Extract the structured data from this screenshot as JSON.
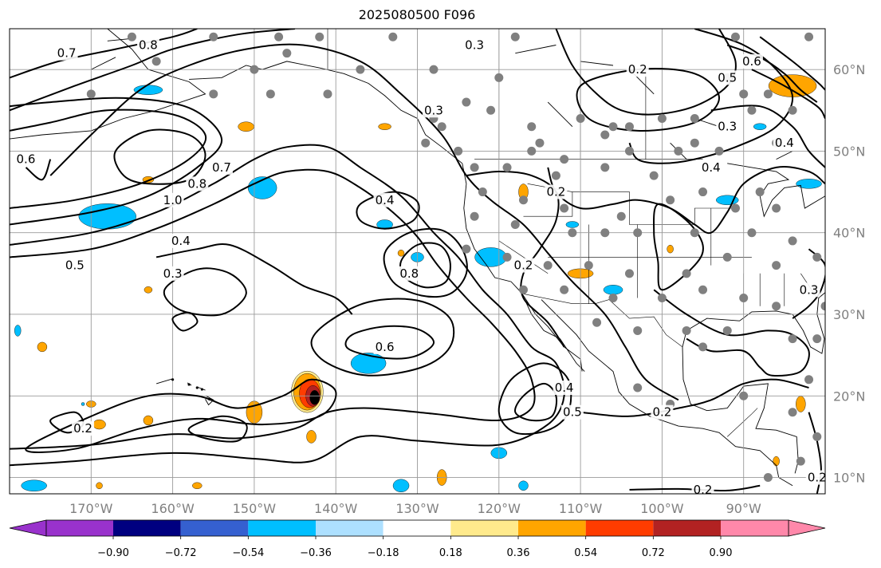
{
  "figure": {
    "title": "2025080500 F096"
  },
  "map": {
    "extent": {
      "lon": [
        -180,
        -80
      ],
      "lat": [
        8,
        65
      ]
    },
    "lon_labels": [
      "170°W",
      "160°W",
      "150°W",
      "140°W",
      "130°W",
      "120°W",
      "110°W",
      "100°W",
      "90°W"
    ],
    "lat_labels": [
      "60°N",
      "50°N",
      "40°N",
      "30°N",
      "20°N",
      "10°N"
    ],
    "contour_labels": [
      {
        "text": "0.7",
        "lon": -173,
        "lat": 62
      },
      {
        "text": "0.8",
        "lon": -163,
        "lat": 63
      },
      {
        "text": "0.6",
        "lon": -178,
        "lat": 49
      },
      {
        "text": "1.0",
        "lon": -160,
        "lat": 44
      },
      {
        "text": "0.8",
        "lon": -157,
        "lat": 46
      },
      {
        "text": "0.7",
        "lon": -154,
        "lat": 48
      },
      {
        "text": "0.5",
        "lon": -172,
        "lat": 36
      },
      {
        "text": "0.4",
        "lon": -159,
        "lat": 39
      },
      {
        "text": "0.3",
        "lon": -160,
        "lat": 35
      },
      {
        "text": "0.3",
        "lon": -123,
        "lat": 63
      },
      {
        "text": "0.3",
        "lon": -128,
        "lat": 55
      },
      {
        "text": "0.4",
        "lon": -134,
        "lat": 44
      },
      {
        "text": "0.8",
        "lon": -131,
        "lat": 35
      },
      {
        "text": "0.6",
        "lon": -134,
        "lat": 26
      },
      {
        "text": "0.2",
        "lon": -117,
        "lat": 36
      },
      {
        "text": "0.2",
        "lon": -113,
        "lat": 45
      },
      {
        "text": "0.2",
        "lon": -103,
        "lat": 60
      },
      {
        "text": "0.4",
        "lon": -112,
        "lat": 21
      },
      {
        "text": "0.5",
        "lon": -111,
        "lat": 18
      },
      {
        "text": "0.2",
        "lon": -100,
        "lat": 18
      },
      {
        "text": "0.2",
        "lon": -171,
        "lat": 16
      },
      {
        "text": "0.5",
        "lon": -92,
        "lat": 59
      },
      {
        "text": "0.6",
        "lon": -89,
        "lat": 61
      },
      {
        "text": "0.3",
        "lon": -92,
        "lat": 53
      },
      {
        "text": "0.4",
        "lon": -85,
        "lat": 51
      },
      {
        "text": "0.4",
        "lon": -94,
        "lat": 48
      },
      {
        "text": "0.3",
        "lon": -82,
        "lat": 33
      },
      {
        "text": "0.2",
        "lon": -81,
        "lat": 10
      },
      {
        "text": "0.2",
        "lon": -95,
        "lat": 8.5
      }
    ],
    "stations": [
      [
        -165,
        64
      ],
      [
        -155,
        64
      ],
      [
        -147,
        64
      ],
      [
        -142,
        64
      ],
      [
        -133,
        64
      ],
      [
        -118,
        64
      ],
      [
        -91,
        64
      ],
      [
        -82,
        64
      ],
      [
        -162,
        61
      ],
      [
        -150,
        60
      ],
      [
        -146,
        62
      ],
      [
        -137,
        60
      ],
      [
        -128,
        60
      ],
      [
        -120,
        59
      ],
      [
        -92,
        59
      ],
      [
        -170,
        57
      ],
      [
        -155,
        57
      ],
      [
        -148,
        57
      ],
      [
        -141,
        57
      ],
      [
        -124,
        56
      ],
      [
        -121,
        55
      ],
      [
        -90,
        57
      ],
      [
        -87,
        57
      ],
      [
        -110,
        54
      ],
      [
        -106,
        53
      ],
      [
        -104,
        53
      ],
      [
        -100,
        54
      ],
      [
        -96,
        54
      ],
      [
        -89,
        55
      ],
      [
        -84,
        55
      ],
      [
        -128,
        54
      ],
      [
        -127,
        53
      ],
      [
        -116,
        53
      ],
      [
        -115,
        51
      ],
      [
        -107,
        52
      ],
      [
        -98,
        50
      ],
      [
        -96,
        51
      ],
      [
        -93,
        50
      ],
      [
        -129,
        51
      ],
      [
        -125,
        50
      ],
      [
        -116,
        50
      ],
      [
        -112,
        49
      ],
      [
        -104,
        50
      ],
      [
        -86,
        51
      ],
      [
        -123,
        48
      ],
      [
        -119,
        48
      ],
      [
        -113,
        47
      ],
      [
        -107,
        48
      ],
      [
        -101,
        47
      ],
      [
        -95,
        45
      ],
      [
        -88,
        45
      ],
      [
        -122,
        45
      ],
      [
        -117,
        44
      ],
      [
        -112,
        43
      ],
      [
        -105,
        42
      ],
      [
        -99,
        44
      ],
      [
        -91,
        43
      ],
      [
        -86,
        43
      ],
      [
        -123,
        42
      ],
      [
        -118,
        41
      ],
      [
        -111,
        40
      ],
      [
        -107,
        40
      ],
      [
        -103,
        40
      ],
      [
        -96,
        40
      ],
      [
        -89,
        40
      ],
      [
        -84,
        39
      ],
      [
        -124,
        38
      ],
      [
        -119,
        37
      ],
      [
        -114,
        36
      ],
      [
        -109,
        36
      ],
      [
        -104,
        35
      ],
      [
        -97,
        35
      ],
      [
        -92,
        37
      ],
      [
        -86,
        36
      ],
      [
        -81,
        37
      ],
      [
        -117,
        33
      ],
      [
        -112,
        33
      ],
      [
        -106,
        32
      ],
      [
        -100,
        32
      ],
      [
        -95,
        33
      ],
      [
        -90,
        32
      ],
      [
        -86,
        31
      ],
      [
        -80,
        31
      ],
      [
        -108,
        29
      ],
      [
        -103,
        28
      ],
      [
        -97,
        28
      ],
      [
        -92,
        28
      ],
      [
        -84,
        27
      ],
      [
        -81,
        27
      ],
      [
        -95,
        26
      ],
      [
        -82,
        22
      ],
      [
        -103,
        21
      ],
      [
        -99,
        19
      ],
      [
        -90,
        20
      ],
      [
        -84,
        18
      ],
      [
        -81,
        15
      ],
      [
        -83,
        12
      ],
      [
        -87,
        10
      ]
    ],
    "hawaii": [
      [
        -160,
        22
      ],
      [
        -158,
        21.4
      ],
      [
        -157,
        21
      ],
      [
        -156.4,
        20.8
      ],
      [
        -155.5,
        19.6
      ]
    ],
    "colorbar": {
      "ticks": [
        "−0.90",
        "−0.72",
        "−0.54",
        "−0.36",
        "−0.18",
        "0.18",
        "0.36",
        "0.54",
        "0.72",
        "0.90"
      ],
      "colors": [
        "#9932cc",
        "#000080",
        "#3560d0",
        "#00bfff",
        "#ade0ff",
        "#ffffff",
        "#ffea8c",
        "#ffa500",
        "#ff3c00",
        "#b22222",
        "#ff88aa"
      ],
      "line_color": "#000000",
      "land_border": "#000000"
    },
    "fill_palette": {
      "dark_neg": "#3560d0",
      "neg": "#00bfff",
      "light_neg": "#ade0ff",
      "light_pos": "#ffea8c",
      "pos": "#ffa500",
      "pos2": "#ff3c00",
      "pos3": "#b22222",
      "core": "#000000"
    }
  }
}
